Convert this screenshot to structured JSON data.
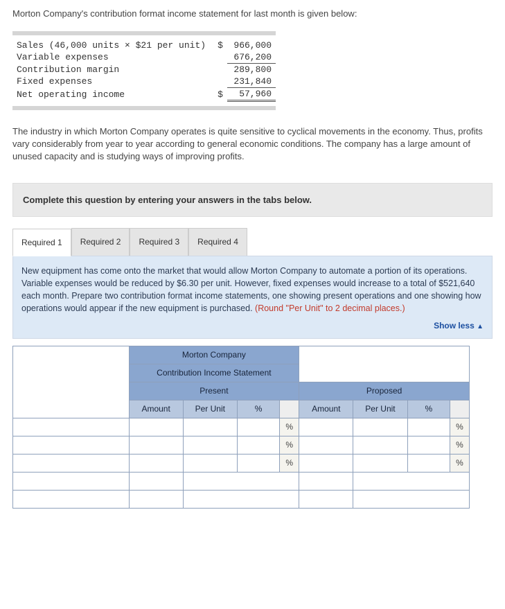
{
  "intro": "Morton Company's contribution format income statement for last month is given below:",
  "ledger": {
    "rows": [
      {
        "label": "Sales (46,000 units × $21 per unit)",
        "sym": "$",
        "val": "966,000"
      },
      {
        "label": "Variable expenses",
        "sym": "",
        "val": "676,200"
      },
      {
        "label": "Contribution margin",
        "sym": "",
        "val": "289,800",
        "rule": "top"
      },
      {
        "label": "Fixed expenses",
        "sym": "",
        "val": "231,840"
      },
      {
        "label": "Net operating income",
        "sym": "$",
        "val": "57,960",
        "rule": "dbl"
      }
    ]
  },
  "para": "The industry in which Morton Company operates is quite sensitive to cyclical movements in the economy. Thus, profits vary considerably from year to year according to general economic conditions. The company has a large amount of unused capacity and is studying ways of improving profits.",
  "instruction": "Complete this question by entering your answers in the tabs below.",
  "tabs": {
    "items": [
      "Required 1",
      "Required 2",
      "Required 3",
      "Required 4"
    ],
    "active_index": 0
  },
  "prompt": {
    "body": "New equipment has come onto the market that would allow Morton Company to automate a portion of its operations. Variable expenses would be reduced by $6.30 per unit. However, fixed expenses would increase to a total of $521,640 each month. Prepare two contribution format income statements, one showing present operations and one showing how operations would appear if the new equipment is purchased. ",
    "red": "(Round \"Per Unit\" to 2 decimal places.)",
    "show_less": "Show less",
    "tri": "▲"
  },
  "grid": {
    "title": "Morton Company",
    "subtitle": "Contribution Income Statement",
    "section_present": "Present",
    "section_proposed": "Proposed",
    "col_amount": "Amount",
    "col_perunit": "Per Unit",
    "col_pct": "%",
    "pct_sym": "%",
    "colors": {
      "header_bg": "#8aa6cf",
      "subheader_bg": "#b8c8df",
      "border": "#8ea0bb",
      "prompt_bg": "#dde9f6"
    }
  }
}
